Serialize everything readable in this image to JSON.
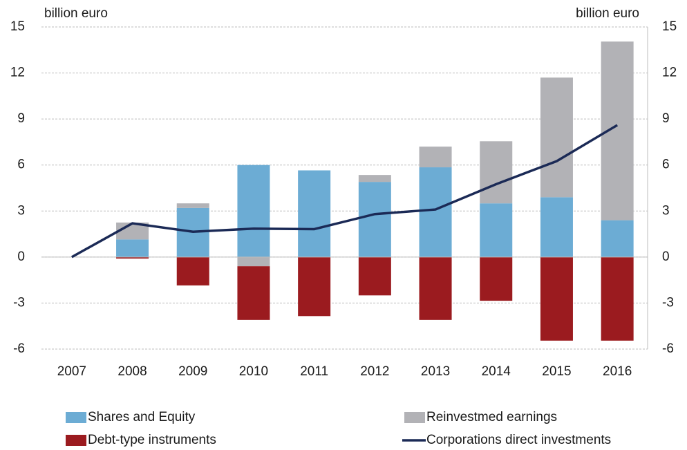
{
  "chart_data": {
    "type": "bar",
    "y_label": "billion euro",
    "y2_label": "billion euro",
    "categories": [
      "2007",
      "2008",
      "2009",
      "2010",
      "2011",
      "2012",
      "2013",
      "2014",
      "2015",
      "2016"
    ],
    "series": [
      {
        "name": "Shares and Equity",
        "color": "#6cacd4",
        "values": [
          0,
          1.15,
          3.2,
          6.0,
          5.65,
          4.9,
          5.85,
          3.5,
          3.9,
          2.4
        ]
      },
      {
        "name": "Reinvestmed earnings",
        "color": "#b2b2b6",
        "values": [
          0,
          1.1,
          0.3,
          -0.6,
          0,
          0.45,
          1.35,
          4.05,
          7.8,
          11.65
        ]
      },
      {
        "name": "Debt-type instruments",
        "color": "#9b1b1f",
        "values": [
          0,
          -0.1,
          -1.85,
          -3.5,
          -3.85,
          -2.5,
          -4.1,
          -2.85,
          -5.45,
          -5.45
        ]
      },
      {
        "name": "Corporations direct investments",
        "color": "#1b2a56",
        "type": "line",
        "values": [
          0,
          2.2,
          1.65,
          1.85,
          1.82,
          2.8,
          3.1,
          4.75,
          6.25,
          8.6
        ]
      }
    ],
    "ylim": [
      -6,
      15
    ],
    "yticks": [
      -6,
      -3,
      0,
      3,
      6,
      9,
      12,
      15
    ],
    "y2lim": [
      -6,
      15
    ],
    "y2ticks": [
      -6,
      -3,
      0,
      3,
      6,
      9,
      12,
      15
    ],
    "grid": true,
    "stacked": true,
    "legend": "bottom"
  }
}
